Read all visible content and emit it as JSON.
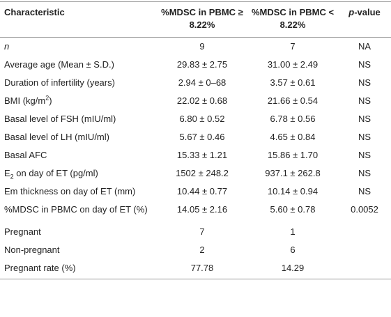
{
  "table": {
    "header": [
      [
        {
          "text": "Characteristic"
        }
      ],
      [
        {
          "text": "%MDSC in PBMC ≥ 8.22%"
        }
      ],
      [
        {
          "text": "%MDSC in PBMC < 8.22%"
        }
      ],
      [
        {
          "text": "p",
          "style": "italic"
        },
        {
          "text": "-value"
        }
      ]
    ],
    "rows": [
      {
        "label": [
          {
            "text": "n",
            "style": "italic"
          }
        ],
        "cells": [
          "9",
          "7",
          "NA"
        ]
      },
      {
        "label": [
          {
            "text": "Average age (Mean ± S.D.)"
          }
        ],
        "cells": [
          "29.83 ± 2.75",
          "31.00 ± 2.49",
          "NS"
        ]
      },
      {
        "label": [
          {
            "text": "Duration of infertility (years)"
          }
        ],
        "cells": [
          "2.94 ± 0–68",
          "3.57 ± 0.61",
          "NS"
        ]
      },
      {
        "label": [
          {
            "text": "BMI (kg/m"
          },
          {
            "text": "2",
            "style": "sup"
          },
          {
            "text": ")"
          }
        ],
        "cells": [
          "22.02 ± 0.68",
          "21.66 ± 0.54",
          "NS"
        ]
      },
      {
        "label": [
          {
            "text": "Basal level of FSH (mIU/ml)"
          }
        ],
        "cells": [
          "6.80 ± 0.52",
          "6.78 ± 0.56",
          "NS"
        ]
      },
      {
        "label": [
          {
            "text": "Basal level of LH (mIU/ml)"
          }
        ],
        "cells": [
          "5.67 ± 0.46",
          "4.65 ± 0.84",
          "NS"
        ]
      },
      {
        "label": [
          {
            "text": "Basal AFC"
          }
        ],
        "cells": [
          "15.33 ± 1.21",
          "15.86 ± 1.70",
          "NS"
        ]
      },
      {
        "label": [
          {
            "text": "E"
          },
          {
            "text": "2",
            "style": "sub"
          },
          {
            "text": " on day of ET (pg/ml)"
          }
        ],
        "cells": [
          "1502 ± 248.2",
          "937.1 ± 262.8",
          "NS"
        ]
      },
      {
        "label": [
          {
            "text": "Em thickness on day of ET (mm)"
          }
        ],
        "cells": [
          "10.44 ± 0.77",
          "10.14 ± 0.94",
          "NS"
        ]
      },
      {
        "label": [
          {
            "text": "%MDSC in PBMC on day of ET (%)"
          }
        ],
        "cells": [
          "14.05 ± 2.16",
          "5.60 ± 0.78",
          "0.0052"
        ]
      },
      {
        "label": [
          {
            "text": "Pregnant"
          }
        ],
        "cells": [
          "7",
          "1"
        ]
      },
      {
        "label": [
          {
            "text": "Non-pregnant"
          }
        ],
        "cells": [
          "2",
          "6"
        ]
      },
      {
        "label": [
          {
            "text": "Pregnant rate (%)"
          }
        ],
        "cells": [
          "77.78",
          "14.29"
        ]
      }
    ]
  }
}
